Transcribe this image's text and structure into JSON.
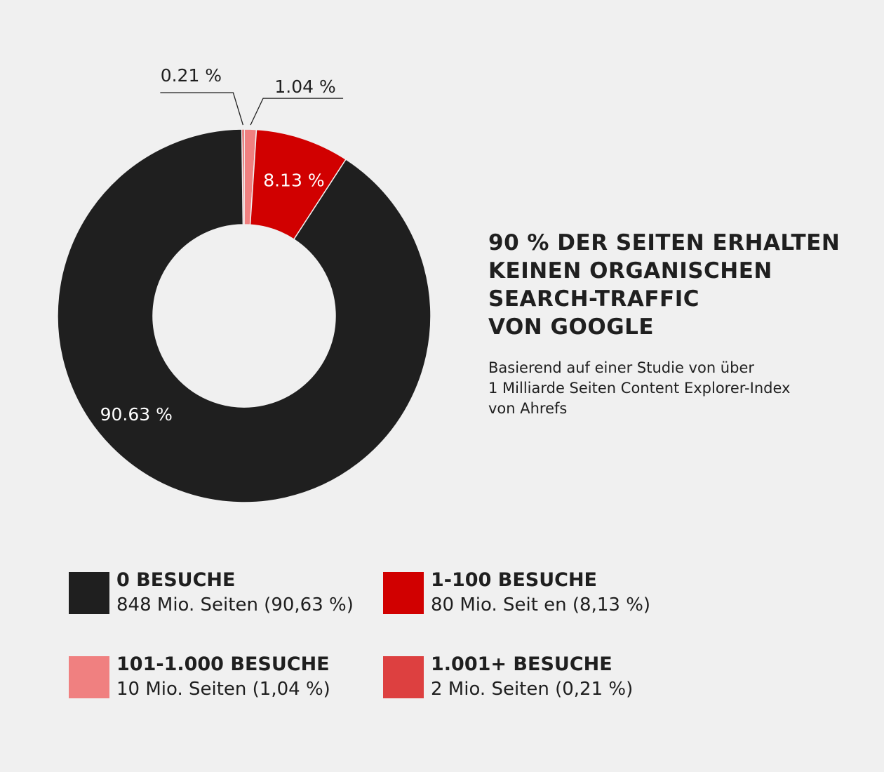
{
  "chart_data": {
    "type": "pie",
    "donut": true,
    "heading_lines": [
      "90 % der Seiten erhalten",
      "keinen organischen",
      "Search-Traffic",
      "von Google"
    ],
    "subtitle_lines": [
      "Basierend auf einer Studie von über",
      "1 Milliarde Seiten Content Explorer-Index",
      "von Ahrefs"
    ],
    "slices": [
      {
        "value": 0.21,
        "label": "0.21 %",
        "color": "#dd4040",
        "label_style": "callout"
      },
      {
        "value": 1.04,
        "label": "1.04 %",
        "color": "#f08080",
        "label_style": "callout"
      },
      {
        "value": 8.13,
        "label": "8.13 %",
        "color": "#d10000",
        "label_style": "inside"
      },
      {
        "value": 90.63,
        "label": "90.63 %",
        "color": "#1f1f1f",
        "label_style": "inside"
      }
    ],
    "legend": [
      {
        "title": "0 BESUCHE",
        "desc": "848 Mio. Seiten (90,63 %)",
        "color": "#1f1f1f"
      },
      {
        "title": "1-100 BESUCHE",
        "desc": "80 Mio. Seit  en (8,13 %)",
        "color": "#d10000"
      },
      {
        "title": "101-1.000 BESUCHE",
        "desc": "10 Mio. Seiten (1,04 %)",
        "color": "#f08080"
      },
      {
        "title": "1.001+ BESUCHE",
        "desc": "2 Mio. Seiten (0,21 %)",
        "color": "#dd4040"
      }
    ]
  }
}
